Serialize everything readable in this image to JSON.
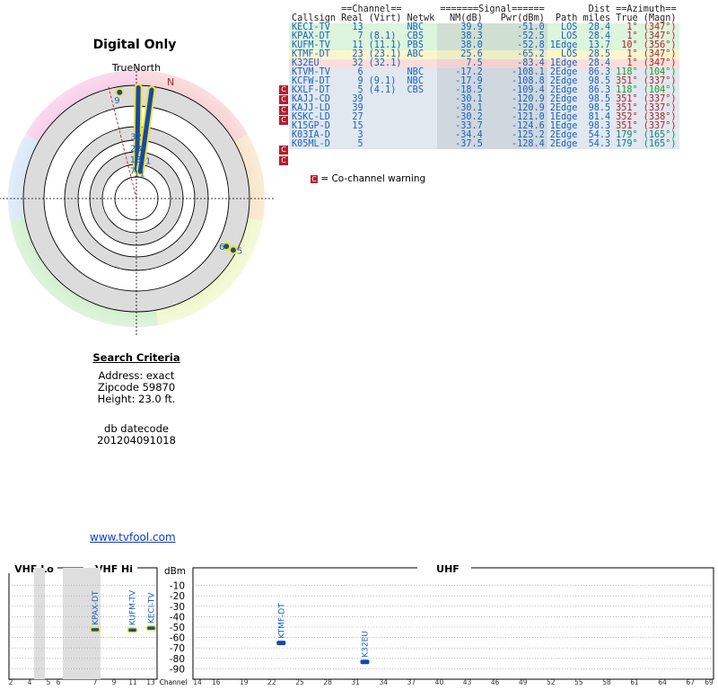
{
  "page": {
    "title": "Digital Only"
  },
  "polar": {
    "north_label": "TrueNorth",
    "magnetic_label": "N",
    "markers": [
      {
        "label": "9",
        "az": 351,
        "r": 0.95,
        "color": "#1a62c0"
      },
      {
        "label": "32",
        "az": 1,
        "r": 0.55,
        "color": "#1a62c0"
      },
      {
        "label": "23",
        "az": 1,
        "r": 0.45,
        "color": "#1a62c0"
      },
      {
        "label": "13",
        "az": 1,
        "r": 0.35,
        "color": "#1a62c0"
      },
      {
        "label": "7",
        "az": 1,
        "r": 0.25,
        "color": "#1a62c0"
      },
      {
        "label": "11",
        "az": 10,
        "r": 0.23,
        "color": "#1a62c0"
      },
      {
        "label": "1",
        "az": 8,
        "r": 0.34,
        "color": "#1a62c0"
      },
      {
        "label": "6",
        "az": 118,
        "r": 0.9,
        "color": "#1a62c0"
      },
      {
        "label": "5",
        "az": 118,
        "r": 0.97,
        "color": "#1a62c0"
      }
    ]
  },
  "search": {
    "heading": "Search Criteria",
    "lines": [
      "Address: exact",
      "Zipcode 59870",
      "Height: 23.0 ft."
    ],
    "db_label": "db datecode",
    "db_value": "201204091018"
  },
  "link": "www.tvfool.com",
  "table": {
    "group_headers": {
      "channel": "==Channel==",
      "signal": "=======Signal======",
      "dist": "Dist",
      "azimuth": "==Azimuth=="
    },
    "headers": [
      "Callsign",
      "Real",
      "(Virt)",
      "Netwk",
      "NM(dB)",
      "Pwr(dBm)",
      "Path",
      "miles",
      "True",
      "(Magn)"
    ],
    "rows": [
      {
        "call": "KECI-TV",
        "real": "13",
        "virt": "",
        "net": "NBC",
        "nm": "39.9",
        "pwr": "-51.0",
        "path": "LOS",
        "miles": "28.4",
        "true": "1°",
        "magn": "(347°)",
        "color": "green",
        "azc": "red",
        "cc": false
      },
      {
        "call": "KPAX-DT",
        "real": "7",
        "virt": "(8.1)",
        "net": "CBS",
        "nm": "38.3",
        "pwr": "-52.5",
        "path": "LOS",
        "miles": "28.4",
        "true": "1°",
        "magn": "(347°)",
        "color": "green",
        "azc": "red",
        "cc": false
      },
      {
        "call": "KUFM-TV",
        "real": "11",
        "virt": "(11.1)",
        "net": "PBS",
        "nm": "38.0",
        "pwr": "-52.8",
        "path": "1Edge",
        "miles": "13.7",
        "true": "10°",
        "magn": "(356°)",
        "color": "green",
        "azc": "red",
        "cc": false
      },
      {
        "call": "KTMF-DT",
        "real": "23",
        "virt": "(23.1)",
        "net": "ABC",
        "nm": "25.6",
        "pwr": "-65.2",
        "path": "LOS",
        "miles": "28.5",
        "true": "1°",
        "magn": "(347°)",
        "color": "yellow",
        "azc": "red",
        "cc": false
      },
      {
        "call": "K32EU",
        "real": "32",
        "virt": "(32.1)",
        "net": "",
        "nm": "7.5",
        "pwr": "-83.4",
        "path": "1Edge",
        "miles": "28.4",
        "true": "1°",
        "magn": "(347°)",
        "color": "pink",
        "azc": "red",
        "cc": false
      },
      {
        "call": "KTVM-TV",
        "real": "6",
        "virt": "",
        "net": "NBC",
        "nm": "-17.2",
        "pwr": "-108.1",
        "path": "2Edge",
        "miles": "86.3",
        "true": "118°",
        "magn": "(104°)",
        "color": "blue",
        "azc": "green",
        "cc": false
      },
      {
        "call": "KCFW-DT",
        "real": "9",
        "virt": "(9.1)",
        "net": "NBC",
        "nm": "-17.9",
        "pwr": "-108.8",
        "path": "2Edge",
        "miles": "98.5",
        "true": "351°",
        "magn": "(337°)",
        "color": "blue",
        "azc": "red",
        "cc": true
      },
      {
        "call": "KXLF-DT",
        "real": "5",
        "virt": "(4.1)",
        "net": "CBS",
        "nm": "-18.5",
        "pwr": "-109.4",
        "path": "2Edge",
        "miles": "86.3",
        "true": "118°",
        "magn": "(104°)",
        "color": "blue",
        "azc": "green",
        "cc": true
      },
      {
        "call": "KAJJ-CD",
        "real": "39",
        "virt": "",
        "net": "",
        "nm": "-30.1",
        "pwr": "-120.9",
        "path": "2Edge",
        "miles": "98.5",
        "true": "351°",
        "magn": "(337°)",
        "color": "blue",
        "azc": "red",
        "cc": true
      },
      {
        "call": "KAJJ-LD",
        "real": "39",
        "virt": "",
        "net": "",
        "nm": "-30.1",
        "pwr": "-120.9",
        "path": "2Edge",
        "miles": "98.5",
        "true": "351°",
        "magn": "(337°)",
        "color": "blue",
        "azc": "red",
        "cc": true
      },
      {
        "call": "KSKC-LD",
        "real": "27",
        "virt": "",
        "net": "",
        "nm": "-30.2",
        "pwr": "-121.0",
        "path": "1Edge",
        "miles": "81.4",
        "true": "352°",
        "magn": "(338°)",
        "color": "blue",
        "azc": "red",
        "cc": false
      },
      {
        "call": "K15GP-D",
        "real": "15",
        "virt": "",
        "net": "",
        "nm": "-33.7",
        "pwr": "-124.6",
        "path": "1Edge",
        "miles": "98.3",
        "true": "351°",
        "magn": "(337°)",
        "color": "blue",
        "azc": "red",
        "cc": false
      },
      {
        "call": "K03IA-D",
        "real": "3",
        "virt": "",
        "net": "",
        "nm": "-34.4",
        "pwr": "-125.2",
        "path": "2Edge",
        "miles": "54.3",
        "true": "179°",
        "magn": "(165°)",
        "color": "blue",
        "azc": "teal",
        "cc": true
      },
      {
        "call": "K05ML-D",
        "real": "5",
        "virt": "",
        "net": "",
        "nm": "-37.5",
        "pwr": "-128.4",
        "path": "2Edge",
        "miles": "54.3",
        "true": "179°",
        "magn": "(165°)",
        "color": "blue",
        "azc": "teal",
        "cc": true
      }
    ],
    "cc_glyph": "C",
    "legend": "= Co-channel warning"
  },
  "chart_data": {
    "type": "bar",
    "bands": [
      "VHF Lo",
      "VHF Hi",
      "UHF"
    ],
    "ylabel": "dBm",
    "xlabel": "Channel",
    "yticks": [
      -10,
      -20,
      -30,
      -40,
      -50,
      -60,
      -70,
      -80,
      -90
    ],
    "ylim": [
      0,
      -100
    ],
    "vhf_lo_ticks": [
      "2",
      "4",
      "5",
      "6"
    ],
    "vhf_hi_ticks": [
      "7",
      "9",
      "11",
      "13"
    ],
    "uhf_ticks": [
      "14",
      "16",
      "19",
      "22",
      "25",
      "28",
      "31",
      "34",
      "37",
      "40",
      "43",
      "46",
      "49",
      "52",
      "55",
      "58",
      "61",
      "64",
      "67",
      "69"
    ],
    "stations": [
      {
        "name": "KPAX-DT",
        "channel": 7,
        "dbm": -52.5
      },
      {
        "name": "KUFM-TV",
        "channel": 11,
        "dbm": -52.8
      },
      {
        "name": "KECI-TV",
        "channel": 13,
        "dbm": -51.0
      },
      {
        "name": "KTMF-DT",
        "channel": 23,
        "dbm": -65.2
      },
      {
        "name": "K32EU",
        "channel": 32,
        "dbm": -83.4
      }
    ]
  }
}
